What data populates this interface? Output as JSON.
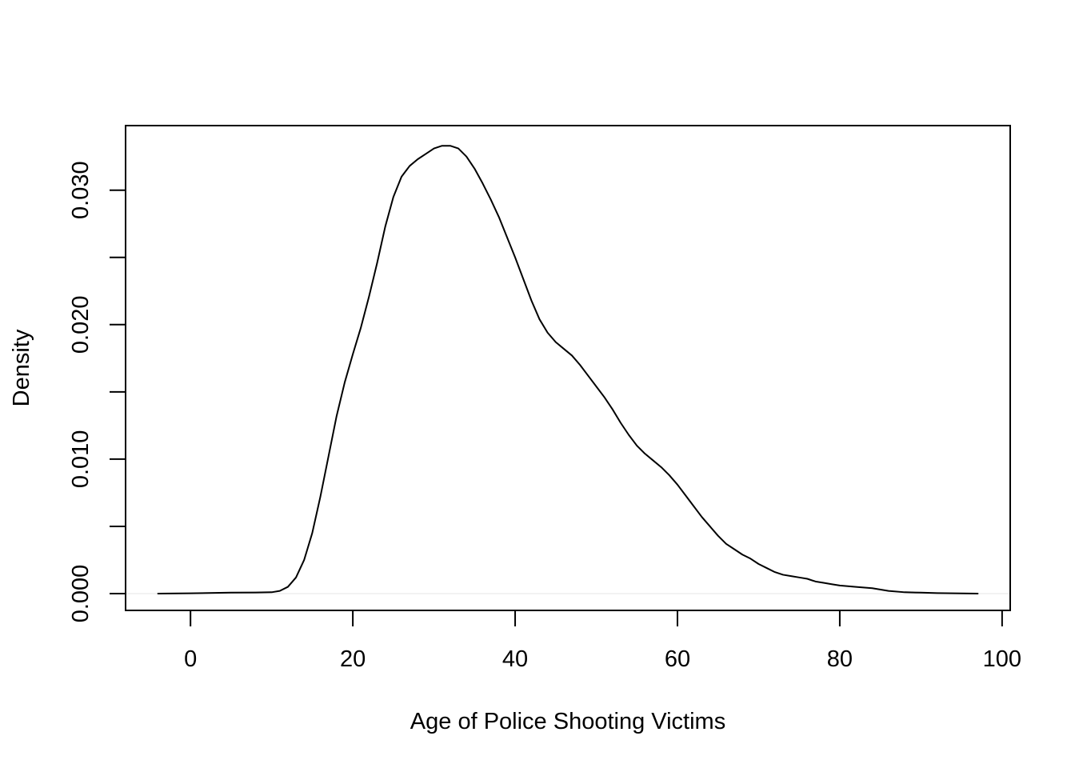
{
  "chart_data": {
    "type": "line",
    "title": "",
    "xlabel": "Age of Police Shooting Victims",
    "ylabel": "Density",
    "xlim": [
      -8,
      101
    ],
    "ylim": [
      -0.00125,
      0.0348
    ],
    "x_ticks": [
      0,
      20,
      40,
      60,
      80,
      100
    ],
    "x_tick_labels": [
      "0",
      "20",
      "40",
      "60",
      "80",
      "100"
    ],
    "y_ticks": [
      0,
      0.005,
      0.01,
      0.015,
      0.02,
      0.025,
      0.03
    ],
    "y_tick_labels": [
      "0.000",
      "",
      "0.010",
      "",
      "0.020",
      "",
      "0.030"
    ],
    "grid": false,
    "baseline": 0,
    "series": [
      {
        "color": "#000000",
        "x": [
          -4,
          0,
          5,
          8,
          10,
          11,
          12,
          13,
          14,
          15,
          16,
          17,
          18,
          19,
          20,
          21,
          22,
          23,
          24,
          25,
          26,
          27,
          28,
          29,
          30,
          31,
          32,
          33,
          34,
          35,
          36,
          37,
          38,
          39,
          40,
          41,
          42,
          43,
          44,
          45,
          46,
          47,
          48,
          49,
          50,
          51,
          52,
          53,
          54,
          55,
          56,
          57,
          58,
          59,
          60,
          61,
          62,
          63,
          64,
          65,
          66,
          67,
          68,
          69,
          70,
          71,
          72,
          73,
          74,
          75,
          76,
          77,
          78,
          79,
          80,
          82,
          84,
          86,
          88,
          90,
          92,
          94,
          97
        ],
        "y": [
          0.0,
          2e-05,
          7e-05,
          8e-05,
          0.0001,
          0.0002,
          0.0005,
          0.0012,
          0.0025,
          0.0045,
          0.0072,
          0.0102,
          0.0132,
          0.0157,
          0.0178,
          0.0198,
          0.0221,
          0.0246,
          0.0273,
          0.0295,
          0.031,
          0.0318,
          0.0323,
          0.0327,
          0.0331,
          0.0333,
          0.0333,
          0.0331,
          0.0325,
          0.0316,
          0.0305,
          0.0293,
          0.028,
          0.0265,
          0.025,
          0.0234,
          0.0218,
          0.0204,
          0.0194,
          0.0187,
          0.0182,
          0.0177,
          0.017,
          0.0162,
          0.0154,
          0.0146,
          0.0137,
          0.0127,
          0.0118,
          0.011,
          0.0104,
          0.0099,
          0.0094,
          0.0088,
          0.0081,
          0.0073,
          0.0065,
          0.0057,
          0.005,
          0.0043,
          0.0037,
          0.0033,
          0.0029,
          0.0026,
          0.0022,
          0.0019,
          0.0016,
          0.0014,
          0.0013,
          0.0012,
          0.0011,
          0.0009,
          0.0008,
          0.0007,
          0.0006,
          0.0005,
          0.0004,
          0.0002,
          0.0001,
          7e-05,
          4e-05,
          2e-05,
          0.0
        ]
      }
    ]
  }
}
